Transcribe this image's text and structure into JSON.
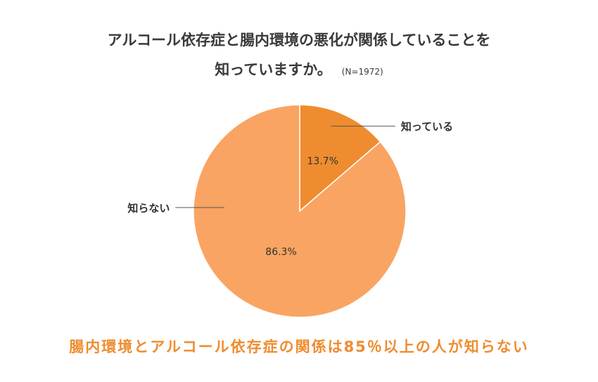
{
  "chart_data": {
    "type": "pie",
    "title_line1": "アルコール依存症と腸内環境の悪化が関係していることを",
    "title_line2": "知っていますか。",
    "note": "(N=1972)",
    "slices": [
      {
        "label": "知っている",
        "value": 13.7,
        "value_label": "13.7%",
        "color": "#ef8c2f"
      },
      {
        "label": "知らない",
        "value": 86.3,
        "value_label": "86.3%",
        "color": "#f9a462"
      }
    ]
  },
  "footer_text": "腸内環境とアルコール依存症の関係は85％以上の人が知らない"
}
